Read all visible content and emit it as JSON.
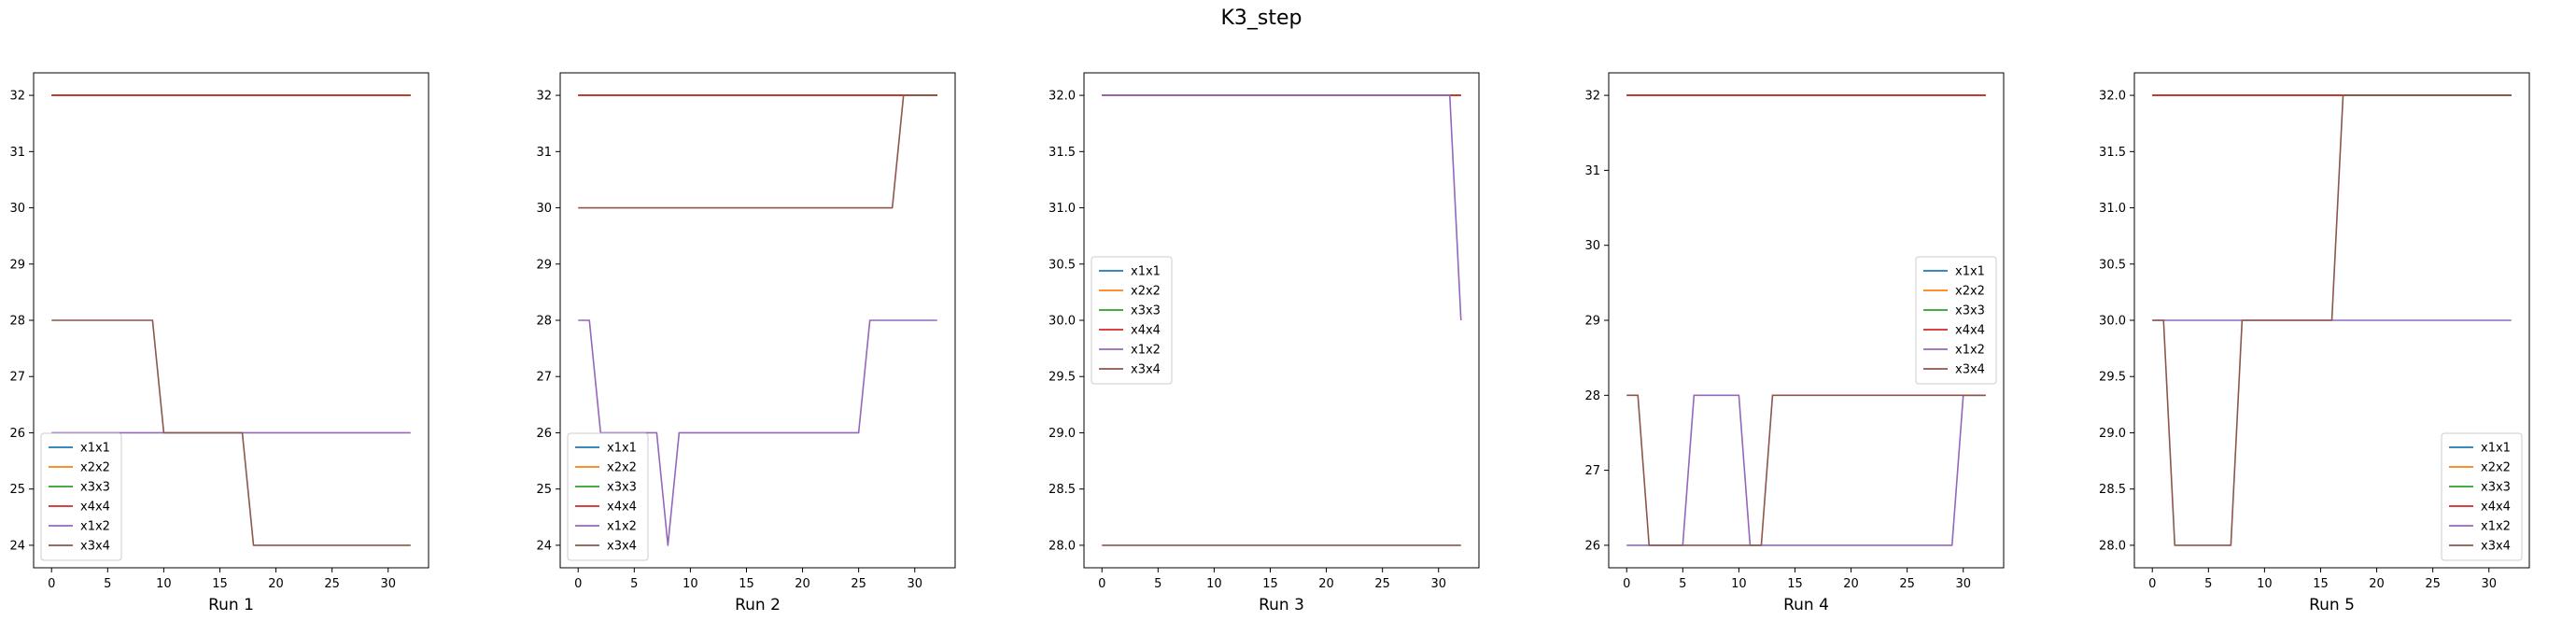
{
  "title": "K3_step",
  "series_names": [
    "x1x1",
    "x2x2",
    "x3x3",
    "x4x4",
    "x1x2",
    "x3x4"
  ],
  "colors": {
    "x1x1": "#1f77b4",
    "x2x2": "#ff7f0e",
    "x3x3": "#2ca02c",
    "x4x4": "#d62728",
    "x1x2": "#9467bd",
    "x3x4": "#8c564b"
  },
  "chart_data": [
    {
      "type": "line",
      "xlabel": "Run 1",
      "xlim": [
        -1.6,
        33.6
      ],
      "ylim": [
        23.6,
        32.4
      ],
      "xticks": [
        "0",
        "5",
        "10",
        "15",
        "20",
        "25",
        "30"
      ],
      "xtick_values": [
        0,
        5,
        10,
        15,
        20,
        25,
        30
      ],
      "yticks": [
        "24",
        "25",
        "26",
        "27",
        "28",
        "29",
        "30",
        "31",
        "32"
      ],
      "ytick_values": [
        24,
        25,
        26,
        27,
        28,
        29,
        30,
        31,
        32
      ],
      "legend": "lower-left",
      "series": [
        {
          "name": "x1x1",
          "points": [
            [
              0,
              32
            ],
            [
              32,
              32
            ]
          ]
        },
        {
          "name": "x2x2",
          "points": [
            [
              0,
              32
            ],
            [
              32,
              32
            ]
          ]
        },
        {
          "name": "x3x3",
          "points": [
            [
              0,
              32
            ],
            [
              32,
              32
            ]
          ]
        },
        {
          "name": "x4x4",
          "points": [
            [
              0,
              32
            ],
            [
              32,
              32
            ]
          ]
        },
        {
          "name": "x1x2",
          "points": [
            [
              0,
              26
            ],
            [
              32,
              26
            ]
          ]
        },
        {
          "name": "x3x4",
          "points": [
            [
              0,
              28
            ],
            [
              9,
              28
            ],
            [
              10,
              26
            ],
            [
              17,
              26
            ],
            [
              18,
              24
            ],
            [
              32,
              24
            ]
          ]
        }
      ]
    },
    {
      "type": "line",
      "xlabel": "Run 2",
      "xlim": [
        -1.6,
        33.6
      ],
      "ylim": [
        23.6,
        32.4
      ],
      "xticks": [
        "0",
        "5",
        "10",
        "15",
        "20",
        "25",
        "30"
      ],
      "xtick_values": [
        0,
        5,
        10,
        15,
        20,
        25,
        30
      ],
      "yticks": [
        "24",
        "25",
        "26",
        "27",
        "28",
        "29",
        "30",
        "31",
        "32"
      ],
      "ytick_values": [
        24,
        25,
        26,
        27,
        28,
        29,
        30,
        31,
        32
      ],
      "legend": "lower-left",
      "series": [
        {
          "name": "x1x1",
          "points": [
            [
              0,
              32
            ],
            [
              32,
              32
            ]
          ]
        },
        {
          "name": "x2x2",
          "points": [
            [
              0,
              32
            ],
            [
              32,
              32
            ]
          ]
        },
        {
          "name": "x3x3",
          "points": [
            [
              0,
              32
            ],
            [
              32,
              32
            ]
          ]
        },
        {
          "name": "x4x4",
          "points": [
            [
              0,
              32
            ],
            [
              32,
              32
            ]
          ]
        },
        {
          "name": "x1x2",
          "points": [
            [
              0,
              28
            ],
            [
              1,
              28
            ],
            [
              2,
              26
            ],
            [
              7,
              26
            ],
            [
              8,
              24
            ],
            [
              9,
              26
            ],
            [
              25,
              26
            ],
            [
              26,
              28
            ],
            [
              32,
              28
            ]
          ]
        },
        {
          "name": "x3x4",
          "points": [
            [
              0,
              30
            ],
            [
              28,
              30
            ],
            [
              29,
              32
            ],
            [
              32,
              32
            ]
          ]
        }
      ]
    },
    {
      "type": "line",
      "xlabel": "Run 3",
      "xlim": [
        -1.6,
        33.6
      ],
      "ylim": [
        27.8,
        32.2
      ],
      "xticks": [
        "0",
        "5",
        "10",
        "15",
        "20",
        "25",
        "30"
      ],
      "xtick_values": [
        0,
        5,
        10,
        15,
        20,
        25,
        30
      ],
      "yticks": [
        "28.0",
        "28.5",
        "29.0",
        "29.5",
        "30.0",
        "30.5",
        "31.0",
        "31.5",
        "32.0"
      ],
      "ytick_values": [
        28,
        28.5,
        29,
        29.5,
        30,
        30.5,
        31,
        31.5,
        32
      ],
      "legend": "center-left",
      "series": [
        {
          "name": "x1x1",
          "points": [
            [
              0,
              32
            ],
            [
              32,
              32
            ]
          ]
        },
        {
          "name": "x2x2",
          "points": [
            [
              0,
              32
            ],
            [
              32,
              32
            ]
          ]
        },
        {
          "name": "x3x3",
          "points": [
            [
              0,
              32
            ],
            [
              32,
              32
            ]
          ]
        },
        {
          "name": "x4x4",
          "points": [
            [
              0,
              32
            ],
            [
              32,
              32
            ]
          ]
        },
        {
          "name": "x1x2",
          "points": [
            [
              0,
              32
            ],
            [
              31,
              32
            ],
            [
              32,
              30
            ]
          ]
        },
        {
          "name": "x3x4",
          "points": [
            [
              0,
              28
            ],
            [
              32,
              28
            ]
          ]
        }
      ]
    },
    {
      "type": "line",
      "xlabel": "Run 4",
      "xlim": [
        -1.6,
        33.6
      ],
      "ylim": [
        25.7,
        32.3
      ],
      "xticks": [
        "0",
        "5",
        "10",
        "15",
        "20",
        "25",
        "30"
      ],
      "xtick_values": [
        0,
        5,
        10,
        15,
        20,
        25,
        30
      ],
      "yticks": [
        "26",
        "27",
        "28",
        "29",
        "30",
        "31",
        "32"
      ],
      "ytick_values": [
        26,
        27,
        28,
        29,
        30,
        31,
        32
      ],
      "legend": "center-right",
      "series": [
        {
          "name": "x1x1",
          "points": [
            [
              0,
              32
            ],
            [
              32,
              32
            ]
          ]
        },
        {
          "name": "x2x2",
          "points": [
            [
              0,
              32
            ],
            [
              32,
              32
            ]
          ]
        },
        {
          "name": "x3x3",
          "points": [
            [
              0,
              32
            ],
            [
              32,
              32
            ]
          ]
        },
        {
          "name": "x4x4",
          "points": [
            [
              0,
              32
            ],
            [
              32,
              32
            ]
          ]
        },
        {
          "name": "x1x2",
          "points": [
            [
              0,
              26
            ],
            [
              5,
              26
            ],
            [
              6,
              28
            ],
            [
              10,
              28
            ],
            [
              11,
              26
            ],
            [
              29,
              26
            ],
            [
              30,
              28
            ],
            [
              32,
              28
            ]
          ]
        },
        {
          "name": "x3x4",
          "points": [
            [
              0,
              28
            ],
            [
              1,
              28
            ],
            [
              2,
              26
            ],
            [
              11,
              26
            ],
            [
              12,
              26
            ],
            [
              13,
              28
            ],
            [
              32,
              28
            ]
          ]
        }
      ]
    },
    {
      "type": "line",
      "xlabel": "Run 5",
      "xlim": [
        -1.6,
        33.6
      ],
      "ylim": [
        27.8,
        32.2
      ],
      "xticks": [
        "0",
        "5",
        "10",
        "15",
        "20",
        "25",
        "30"
      ],
      "xtick_values": [
        0,
        5,
        10,
        15,
        20,
        25,
        30
      ],
      "yticks": [
        "28.0",
        "28.5",
        "29.0",
        "29.5",
        "30.0",
        "30.5",
        "31.0",
        "31.5",
        "32.0"
      ],
      "ytick_values": [
        28,
        28.5,
        29,
        29.5,
        30,
        30.5,
        31,
        31.5,
        32
      ],
      "legend": "lower-right",
      "series": [
        {
          "name": "x1x1",
          "points": [
            [
              0,
              32
            ],
            [
              32,
              32
            ]
          ]
        },
        {
          "name": "x2x2",
          "points": [
            [
              0,
              32
            ],
            [
              32,
              32
            ]
          ]
        },
        {
          "name": "x3x3",
          "points": [
            [
              0,
              32
            ],
            [
              32,
              32
            ]
          ]
        },
        {
          "name": "x4x4",
          "points": [
            [
              0,
              32
            ],
            [
              32,
              32
            ]
          ]
        },
        {
          "name": "x1x2",
          "points": [
            [
              0,
              30
            ],
            [
              32,
              30
            ]
          ]
        },
        {
          "name": "x3x4",
          "points": [
            [
              0,
              30
            ],
            [
              1,
              30
            ],
            [
              2,
              28
            ],
            [
              7,
              28
            ],
            [
              8,
              30
            ],
            [
              16,
              30
            ],
            [
              17,
              32
            ],
            [
              32,
              32
            ]
          ]
        }
      ]
    }
  ]
}
